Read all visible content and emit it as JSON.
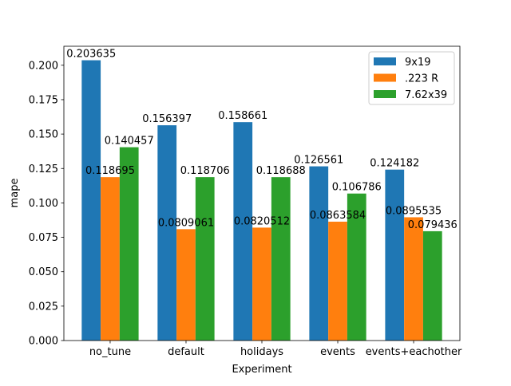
{
  "chart_data": {
    "type": "bar",
    "title": "",
    "xlabel": "Experiment",
    "ylabel": "mape",
    "categories": [
      "no_tune",
      "default",
      "holidays",
      "events",
      "events+eachother"
    ],
    "series": [
      {
        "name": "9x19",
        "color": "#1f77b4",
        "values": [
          0.203635,
          0.156397,
          0.158661,
          0.126561,
          0.124182
        ],
        "labels": [
          "0.203635",
          "0.156397",
          "0.158661",
          "0.126561",
          "0.124182"
        ]
      },
      {
        "name": ".223 R",
        "color": "#ff7f0e",
        "values": [
          0.118695,
          0.0809061,
          0.0820512,
          0.0863584,
          0.0895535
        ],
        "labels": [
          "0.118695",
          "0.0809061",
          "0.0820512",
          "0.0863584",
          "0.0895535"
        ]
      },
      {
        "name": "7.62x39",
        "color": "#2ca02c",
        "values": [
          0.140457,
          0.118706,
          0.118688,
          0.106786,
          0.079436
        ],
        "labels": [
          "0.140457",
          "0.118706",
          "0.118688",
          "0.106786",
          "0.079436"
        ]
      }
    ],
    "ylim": [
      0,
      0.2138
    ],
    "yticks": [
      "0.000",
      "0.025",
      "0.050",
      "0.075",
      "0.100",
      "0.125",
      "0.150",
      "0.175",
      "0.200"
    ],
    "grid": false,
    "legend": "top-right"
  }
}
